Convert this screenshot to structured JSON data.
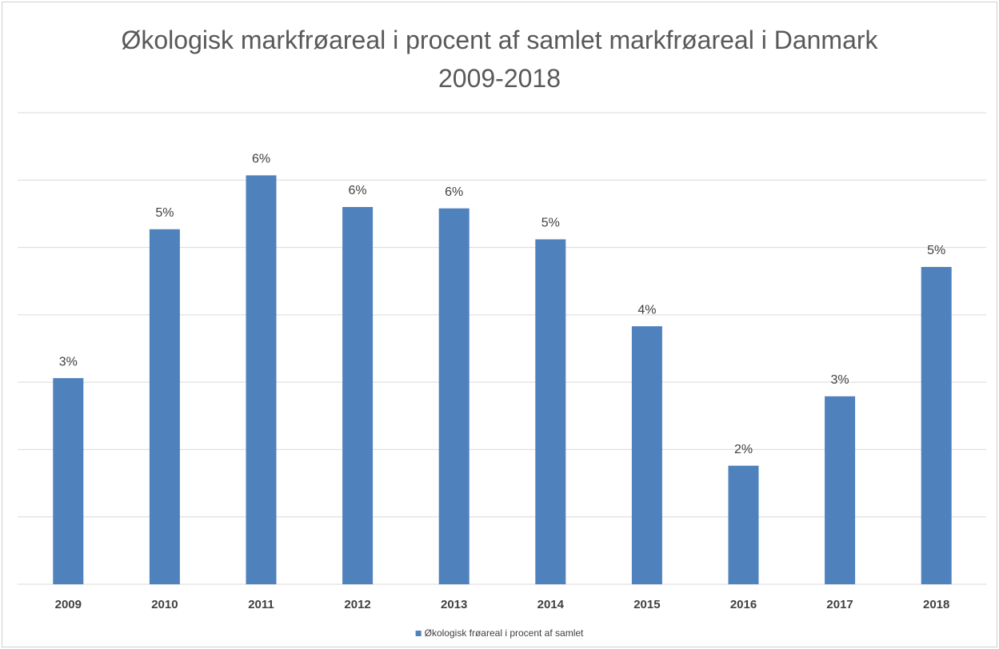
{
  "chart_data": {
    "type": "bar",
    "title": "Økologisk markfrøareal i procent af samlet markfrøareal i Danmark 2009-2018",
    "categories": [
      "2009",
      "2010",
      "2011",
      "2012",
      "2013",
      "2014",
      "2015",
      "2016",
      "2017",
      "2018"
    ],
    "series": [
      {
        "name": "Økologisk frøareal i procent af samlet",
        "color": "#4f81bd",
        "values": [
          3.06,
          5.27,
          6.07,
          5.6,
          5.58,
          5.12,
          3.83,
          1.76,
          2.79,
          4.71
        ],
        "value_labels": [
          "3%",
          "5%",
          "6%",
          "6%",
          "6%",
          "5%",
          "4%",
          "2%",
          "3%",
          "5%"
        ]
      }
    ],
    "ylim": [
      0,
      7
    ],
    "yticks": [
      0,
      1,
      2,
      3,
      4,
      5,
      6,
      7
    ],
    "grid": true,
    "legend": "bottom"
  }
}
